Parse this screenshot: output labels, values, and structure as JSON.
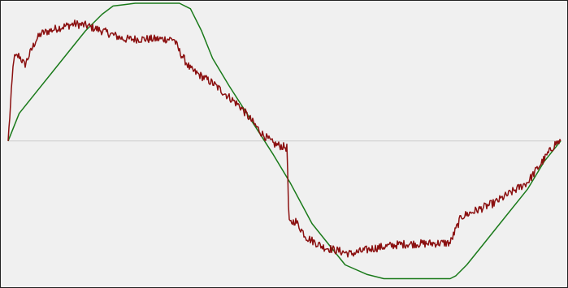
{
  "chart_data": {
    "type": "line",
    "title": "",
    "xlabel": "",
    "ylabel": "",
    "xlim": [
      0,
      1
    ],
    "ylim": [
      -1.05,
      1.0
    ],
    "grid": false,
    "legend": "none",
    "baseline": 0,
    "colors": {
      "background": "#f0f0f0",
      "frame": "#222222",
      "baseline": "#cccccc",
      "green": "#1a7a1a",
      "red": "#8b1010"
    },
    "series": [
      {
        "color": "#1a7a1a",
        "x": [
          0,
          0.02,
          0.05,
          0.08,
          0.11,
          0.14,
          0.17,
          0.19,
          0.21,
          0.23,
          0.25,
          0.28,
          0.31,
          0.33,
          0.35,
          0.37,
          0.4,
          0.44,
          0.48,
          0.51,
          0.53,
          0.55,
          0.58,
          0.61,
          0.65,
          0.68,
          0.71,
          0.72,
          0.8,
          0.81,
          0.83,
          0.86,
          0.9,
          0.94,
          0.97,
          1.0
        ],
        "y": [
          0,
          0.2,
          0.35,
          0.5,
          0.65,
          0.8,
          0.92,
          0.98,
          0.99,
          1.0,
          1.0,
          1.0,
          1.0,
          0.96,
          0.8,
          0.6,
          0.4,
          0.15,
          -0.1,
          -0.3,
          -0.45,
          -0.6,
          -0.75,
          -0.9,
          -0.97,
          -1.0,
          -1.0,
          -1.0,
          -1.0,
          -0.98,
          -0.9,
          -0.75,
          -0.55,
          -0.35,
          -0.15,
          0
        ]
      },
      {
        "color": "#8b1010",
        "x": [
          0,
          0.01,
          0.02,
          0.03,
          0.05,
          0.06,
          0.09,
          0.12,
          0.14,
          0.17,
          0.21,
          0.24,
          0.3,
          0.31,
          0.33,
          0.37,
          0.42,
          0.46,
          0.48,
          0.505,
          0.508,
          0.52,
          0.54,
          0.57,
          0.62,
          0.66,
          0.71,
          0.8,
          0.82,
          0.88,
          0.94,
          0.99,
          1.0
        ],
        "y": [
          0,
          0.6,
          0.62,
          0.55,
          0.73,
          0.78,
          0.82,
          0.85,
          0.84,
          0.8,
          0.74,
          0.74,
          0.74,
          0.65,
          0.52,
          0.42,
          0.25,
          0.05,
          -0.02,
          -0.05,
          -0.6,
          -0.58,
          -0.7,
          -0.77,
          -0.82,
          -0.78,
          -0.75,
          -0.74,
          -0.55,
          -0.45,
          -0.3,
          -0.02,
          0
        ],
        "noise": 0.03
      }
    ]
  }
}
